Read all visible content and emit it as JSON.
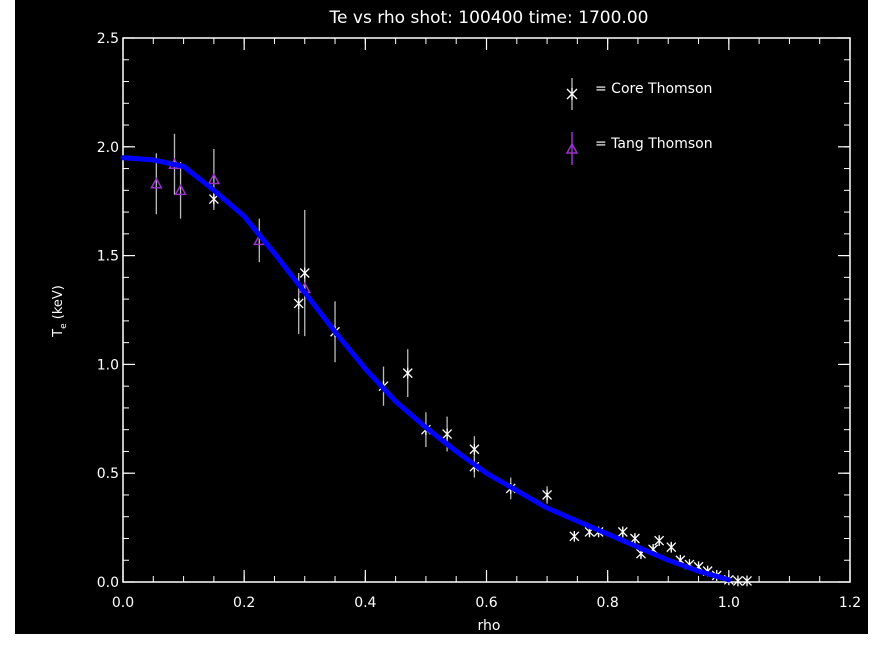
{
  "chart_data": {
    "type": "scatter",
    "title": "Te vs rho   shot: 100400   time: 1700.00",
    "xlabel": "rho",
    "ylabel": "T",
    "ylabel_sub": "e",
    "ylabel_unit": " (keV)",
    "xlim": [
      0.0,
      1.2
    ],
    "ylim": [
      0.0,
      2.5
    ],
    "x_ticks": [
      "0.0",
      "0.2",
      "0.4",
      "0.6",
      "0.8",
      "1.0",
      "1.2"
    ],
    "y_ticks": [
      "0.0",
      "0.5",
      "1.0",
      "1.5",
      "2.0",
      "2.5"
    ],
    "grid": false,
    "legend_position": "top-right",
    "series": [
      {
        "name": "= Core Thomson",
        "color": "#ffffff",
        "marker": "asterisk",
        "points": [
          {
            "x": 0.15,
            "y": 1.76,
            "err": 0.04
          },
          {
            "x": 0.29,
            "y": 1.28,
            "err": 0.14
          },
          {
            "x": 0.3,
            "y": 1.42,
            "err": 0.29
          },
          {
            "x": 0.35,
            "y": 1.15,
            "err": 0.14
          },
          {
            "x": 0.43,
            "y": 0.9,
            "err": 0.09
          },
          {
            "x": 0.47,
            "y": 0.96,
            "err": 0.11
          },
          {
            "x": 0.5,
            "y": 0.7,
            "err": 0.08
          },
          {
            "x": 0.535,
            "y": 0.68,
            "err": 0.08
          },
          {
            "x": 0.58,
            "y": 0.61,
            "err": 0.06
          },
          {
            "x": 0.58,
            "y": 0.53,
            "err": 0.05
          },
          {
            "x": 0.64,
            "y": 0.43,
            "err": 0.05
          },
          {
            "x": 0.7,
            "y": 0.4,
            "err": 0.04
          },
          {
            "x": 0.745,
            "y": 0.21,
            "err": 0.02
          },
          {
            "x": 0.77,
            "y": 0.23,
            "err": 0.02
          },
          {
            "x": 0.785,
            "y": 0.23,
            "err": 0.02
          },
          {
            "x": 0.825,
            "y": 0.23,
            "err": 0.02
          },
          {
            "x": 0.845,
            "y": 0.2,
            "err": 0.02
          },
          {
            "x": 0.855,
            "y": 0.13,
            "err": 0.02
          },
          {
            "x": 0.875,
            "y": 0.15,
            "err": 0.02
          },
          {
            "x": 0.885,
            "y": 0.19,
            "err": 0.02
          },
          {
            "x": 0.905,
            "y": 0.16,
            "err": 0.02
          },
          {
            "x": 0.92,
            "y": 0.1,
            "err": 0.01
          },
          {
            "x": 0.935,
            "y": 0.08,
            "err": 0.01
          },
          {
            "x": 0.95,
            "y": 0.07,
            "err": 0.01
          },
          {
            "x": 0.965,
            "y": 0.05,
            "err": 0.01
          },
          {
            "x": 0.98,
            "y": 0.03,
            "err": 0.01
          },
          {
            "x": 1.0,
            "y": 0.01,
            "err": 0.01
          },
          {
            "x": 1.015,
            "y": 0.005,
            "err": 0.01
          },
          {
            "x": 1.03,
            "y": 0.005,
            "err": 0.01
          }
        ]
      },
      {
        "name": "= Tang Thomson",
        "color": "#9933cc",
        "marker": "triangle",
        "points": [
          {
            "x": 0.055,
            "y": 1.83,
            "err": 0.14
          },
          {
            "x": 0.085,
            "y": 1.92,
            "err": 0.14
          },
          {
            "x": 0.095,
            "y": 1.8,
            "err": 0.13
          },
          {
            "x": 0.15,
            "y": 1.85,
            "err": 0.14
          },
          {
            "x": 0.225,
            "y": 1.57,
            "err": 0.1
          },
          {
            "x": 0.3,
            "y": 1.35,
            "err": 0.08
          }
        ]
      },
      {
        "name": "fit",
        "color": "#0000ff",
        "marker": "line",
        "points": [
          {
            "x": 0.0,
            "y": 1.95
          },
          {
            "x": 0.05,
            "y": 1.94
          },
          {
            "x": 0.1,
            "y": 1.91
          },
          {
            "x": 0.15,
            "y": 1.8
          },
          {
            "x": 0.2,
            "y": 1.68
          },
          {
            "x": 0.25,
            "y": 1.51
          },
          {
            "x": 0.3,
            "y": 1.33
          },
          {
            "x": 0.35,
            "y": 1.15
          },
          {
            "x": 0.4,
            "y": 0.98
          },
          {
            "x": 0.45,
            "y": 0.83
          },
          {
            "x": 0.5,
            "y": 0.71
          },
          {
            "x": 0.55,
            "y": 0.6
          },
          {
            "x": 0.6,
            "y": 0.5
          },
          {
            "x": 0.65,
            "y": 0.42
          },
          {
            "x": 0.7,
            "y": 0.34
          },
          {
            "x": 0.75,
            "y": 0.28
          },
          {
            "x": 0.8,
            "y": 0.22
          },
          {
            "x": 0.85,
            "y": 0.16
          },
          {
            "x": 0.9,
            "y": 0.1
          },
          {
            "x": 0.95,
            "y": 0.05
          },
          {
            "x": 1.0,
            "y": 0.01
          }
        ]
      }
    ]
  }
}
